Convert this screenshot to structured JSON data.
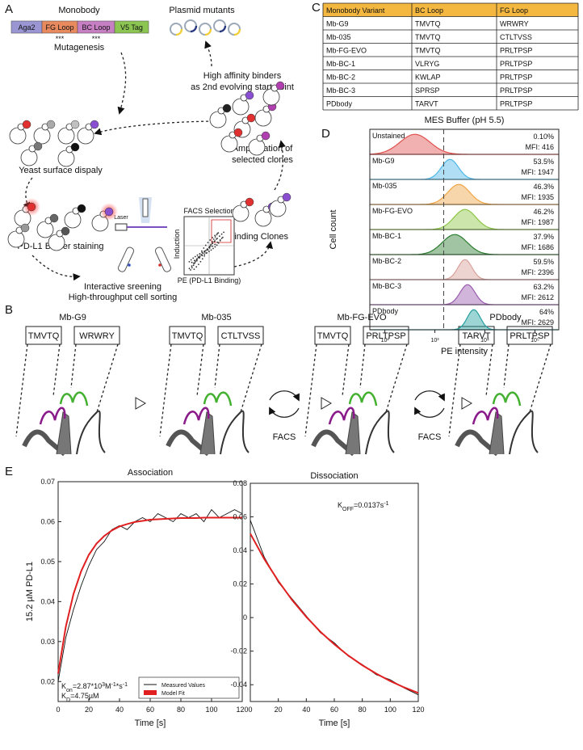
{
  "panel_labels": {
    "a": "A",
    "b": "B",
    "c": "C",
    "d": "D",
    "e": "E"
  },
  "panel_a": {
    "construct_title": "Monobody",
    "construct": [
      {
        "text": "Aga2",
        "color": "#9a96d4"
      },
      {
        "text": "FG Loop",
        "color": "#e8895e"
      },
      {
        "text": "BC Loop",
        "color": "#c77fc4"
      },
      {
        "text": "V5 Tag",
        "color": "#8cc552"
      }
    ],
    "stars": [
      "***",
      "***"
    ],
    "mutagenesis": "Mutagenesis",
    "plasmid": "Plasmid mutants",
    "binders": [
      "High affinity binders",
      "as 2nd evolving start point"
    ],
    "yeast": "Yeast surface dispaly",
    "staining": "PD-L1 Binder staining",
    "amplification": [
      "Amplification of",
      "selected clones"
    ],
    "clones": "Binding Clones",
    "laser": "Laser",
    "facs_title": "FACS Selection",
    "facs_y": "Induction",
    "facs_x": "PE (PD-L1 Binding)",
    "screening": [
      "Interactive sreening",
      "High-throughput cell sorting"
    ]
  },
  "panel_b": {
    "variants": [
      {
        "name": "Mb-G9",
        "bc": "TMVTQ",
        "fg": "WRWRY",
        "name_color": "#111111",
        "bc_color": "#111111",
        "fg_color": "#111111"
      },
      {
        "name": "Mb-035",
        "bc": "TMVTQ",
        "fg": "CTLTVSS",
        "name_color": "#111111",
        "bc_color": "#111111",
        "fg_color": "#e02020"
      },
      {
        "name": "Mb-FG-EVO",
        "bc": "TMVTQ",
        "fg": "PRLTPSP",
        "name_color": "#111111",
        "bc_color": "#111111",
        "fg_color": "#e02020"
      },
      {
        "name": "PDbody",
        "bc": "TARVT",
        "fg": "PRLTPSP",
        "name_color": "#e02020",
        "bc_color": "#e02020",
        "fg_color": "#111111"
      }
    ],
    "cycles": [
      "FACS",
      "FACS"
    ]
  },
  "table": {
    "header": [
      "Monobody Variant",
      "BC Loop",
      "FG Loop"
    ],
    "header_color": "#f4b73f",
    "rows": [
      [
        "Mb-G9",
        "TMVTQ",
        "WRWRY"
      ],
      [
        "Mb-035",
        "TMVTQ",
        "CTLTVSS"
      ],
      [
        "Mb-FG-EVO",
        "TMVTQ",
        "PRLTPSP"
      ],
      [
        "Mb-BC-1",
        "VLRYG",
        "PRLTPSP"
      ],
      [
        "Mb-BC-2",
        "KWLAP",
        "PRLTPSP"
      ],
      [
        "Mb-BC-3",
        "SPRSP",
        "PRLTPSP"
      ],
      [
        "PDbody",
        "TARVT",
        "PRLTPSP"
      ]
    ],
    "colors": [
      [
        "#111111",
        "#111111",
        "#111111"
      ],
      [
        "#111111",
        "#111111",
        "#e02020"
      ],
      [
        "#111111",
        "#111111",
        "#e02020"
      ],
      [
        "#111111",
        "#e02020",
        "#e02020"
      ],
      [
        "#111111",
        "#e02020",
        "#e02020"
      ],
      [
        "#111111",
        "#e02020",
        "#e02020"
      ],
      [
        "#e02020",
        "#e02020",
        "#e02020"
      ]
    ]
  },
  "chart_data": [
    {
      "type": "density",
      "title": "MES Buffer (pH 5.5)",
      "xlabel": "PE intensity",
      "ylabel": "Cell count",
      "xscale": "log",
      "xlim": [
        50,
        300000
      ],
      "xticks": [
        {
          "value": 100,
          "label": "10²"
        },
        {
          "value": 1000,
          "label": "10³"
        },
        {
          "value": 10000,
          "label": "10⁴"
        },
        {
          "value": 100000,
          "label": "10⁵"
        }
      ],
      "gate": 1500,
      "series": [
        {
          "name": "Unstained",
          "color": "#e0524f",
          "name_color": "#111111",
          "peak": 400,
          "spread": 0.3,
          "percent": 0.1,
          "percent_label": "0.10%",
          "mfi": 416,
          "mfi_label": "MFI: 416"
        },
        {
          "name": "Mb-G9",
          "color": "#4fb8e8",
          "name_color": "#111111",
          "peak": 2000,
          "spread": 0.17,
          "percent": 53.5,
          "percent_label": "53.5%",
          "mfi": 1947,
          "mfi_label": "MFI: 1947"
        },
        {
          "name": "Mb-035",
          "color": "#f0a545",
          "name_color": "#111111",
          "peak": 3000,
          "spread": 0.22,
          "percent": 46.3,
          "percent_label": "46.3%",
          "mfi": 1935,
          "mfi_label": "MFI: 1935"
        },
        {
          "name": "Mb-FG-EVO",
          "color": "#8cc545",
          "name_color": "#111111",
          "peak": 4000,
          "spread": 0.22,
          "percent": 46.2,
          "percent_label": "46.2%",
          "mfi": 1987,
          "mfi_label": "MFI: 1987"
        },
        {
          "name": "Mb-BC-1",
          "color": "#2e7d32",
          "name_color": "#111111",
          "peak": 2500,
          "spread": 0.25,
          "percent": 37.9,
          "percent_label": "37.9%",
          "mfi": 1686,
          "mfi_label": "MFI: 1686"
        },
        {
          "name": "Mb-BC-2",
          "color": "#d9a09a",
          "name_color": "#111111",
          "peak": 4000,
          "spread": 0.14,
          "percent": 59.5,
          "percent_label": "59.5%",
          "mfi": 2396,
          "mfi_label": "MFI: 2396"
        },
        {
          "name": "Mb-BC-3",
          "color": "#9a5cb0",
          "name_color": "#111111",
          "peak": 4500,
          "spread": 0.15,
          "percent": 63.2,
          "percent_label": "63.2%",
          "mfi": 2612,
          "mfi_label": "MFI: 2612"
        },
        {
          "name": "PDbody",
          "color": "#26a0a0",
          "name_color": "#e02020",
          "peak": 6000,
          "spread": 0.13,
          "percent": 64,
          "percent_label": "64%",
          "mfi": 2629,
          "mfi_label": "MFI: 2629"
        }
      ]
    },
    {
      "type": "line",
      "title": "Association",
      "xlabel": "Time [s]",
      "ylabel": "15.2 µM PD-L1",
      "xlim": [
        0,
        120
      ],
      "xticks": [
        0,
        20,
        40,
        60,
        80,
        100,
        120
      ],
      "ylim": [
        0.015,
        0.07
      ],
      "yticks": [
        0.02,
        0.03,
        0.04,
        0.05,
        0.06,
        0.07
      ],
      "x": [
        0,
        5,
        10,
        15,
        20,
        25,
        30,
        35,
        40,
        45,
        50,
        55,
        60,
        65,
        70,
        75,
        80,
        85,
        90,
        95,
        100,
        105,
        110,
        115,
        120
      ],
      "series": [
        {
          "name": "Measured Values",
          "color": "#111111",
          "values": [
            0.02,
            0.031,
            0.038,
            0.044,
            0.049,
            0.053,
            0.055,
            0.058,
            0.059,
            0.058,
            0.06,
            0.061,
            0.06,
            0.062,
            0.061,
            0.06,
            0.062,
            0.061,
            0.062,
            0.06,
            0.063,
            0.061,
            0.062,
            0.063,
            0.062
          ]
        },
        {
          "name": "Model Fit",
          "color": "#e02020",
          "values": [
            0.022,
            0.0337,
            0.0419,
            0.0476,
            0.0517,
            0.0545,
            0.0564,
            0.0578,
            0.0588,
            0.0594,
            0.0599,
            0.0602,
            0.0605,
            0.0606,
            0.0607,
            0.0608,
            0.0609,
            0.0609,
            0.0609,
            0.061,
            0.061,
            0.061,
            0.061,
            0.061,
            0.061
          ]
        }
      ],
      "legend": "lower right",
      "annotations": [
        [
          {
            "text": "K"
          },
          {
            "text": "on",
            "pos": "sub"
          },
          {
            "text": "=2.87*10"
          },
          {
            "text": "3",
            "pos": "sup"
          },
          {
            "text": "M"
          },
          {
            "text": "-1",
            "pos": "sup"
          },
          {
            "text": "*s"
          },
          {
            "text": "-1",
            "pos": "sup"
          }
        ],
        [
          {
            "text": "K"
          },
          {
            "text": "D",
            "pos": "sub"
          },
          {
            "text": "=4.75µM"
          }
        ]
      ]
    },
    {
      "type": "line",
      "title": "Dissociation",
      "xlabel": "Time [s]",
      "xlim": [
        0,
        120
      ],
      "xticks": [
        0,
        20,
        40,
        60,
        80,
        100,
        120
      ],
      "ylim": [
        -0.05,
        0.08
      ],
      "yticks": [
        -0.04,
        -0.02,
        0,
        0.02,
        0.04,
        0.06,
        0.08
      ],
      "x": [
        0,
        10,
        20,
        30,
        40,
        50,
        60,
        70,
        80,
        90,
        100,
        110,
        120
      ],
      "series": [
        {
          "color": "#111111",
          "values": [
            0.058,
            0.036,
            0.021,
            0.011,
            0.001,
            -0.009,
            -0.015,
            -0.023,
            -0.028,
            -0.034,
            -0.037,
            -0.042,
            -0.046
          ]
        },
        {
          "color": "#e02020",
          "values": [
            0.05,
            0.0349,
            0.0218,
            0.0103,
            0.0004,
            -0.0084,
            -0.0159,
            -0.0226,
            -0.0284,
            -0.0334,
            -0.0378,
            -0.0416,
            -0.0449
          ]
        }
      ],
      "legend": false,
      "annotations": [
        [
          {
            "text": "K"
          },
          {
            "text": "OFF",
            "pos": "sub"
          },
          {
            "text": "=0.0137s"
          },
          {
            "text": "-1",
            "pos": "sup"
          }
        ]
      ]
    }
  ]
}
